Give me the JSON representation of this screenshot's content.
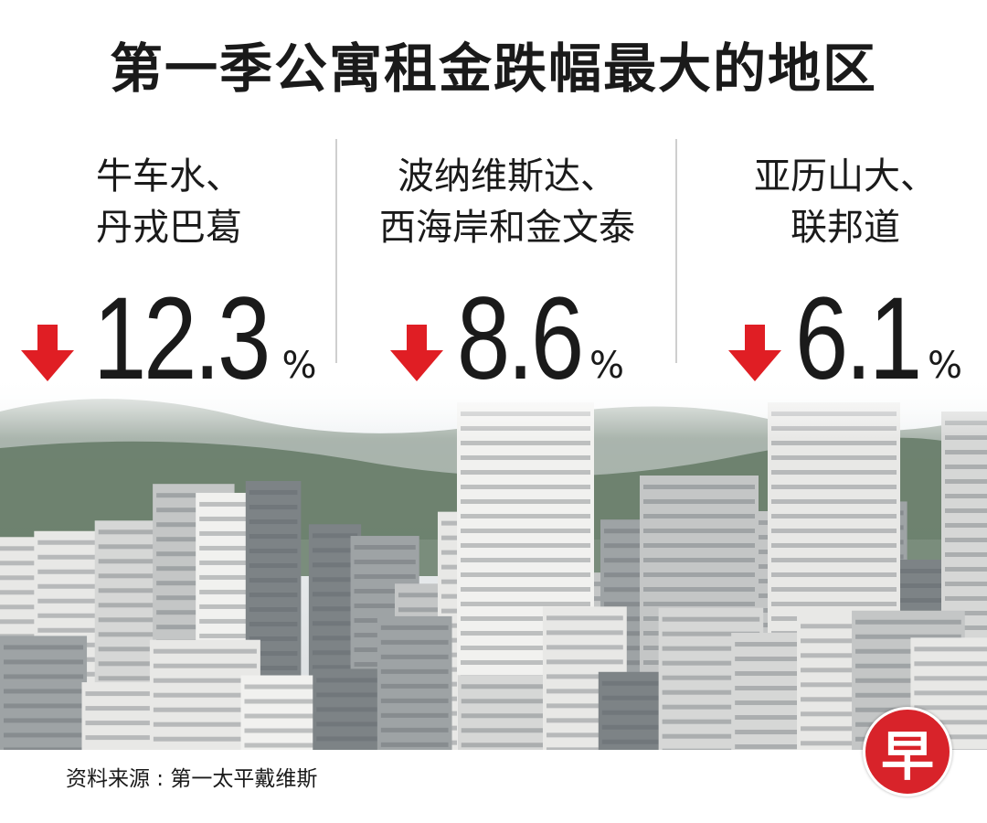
{
  "header": {
    "title": "第一季公寓租金跌幅最大的地区"
  },
  "items": [
    {
      "region": [
        "牛车水、",
        "丹戎巴葛"
      ],
      "value": 12.3,
      "unit": "%"
    },
    {
      "region": [
        "波纳维斯达、",
        "西海岸和金文泰"
      ],
      "value": 8.6,
      "unit": "%"
    },
    {
      "region": [
        "亚历山大、",
        "联邦道"
      ],
      "value": 6.1,
      "unit": "%"
    }
  ],
  "footer": {
    "source": "资料来源 : 第一太平戴维斯",
    "logo": "早"
  }
}
